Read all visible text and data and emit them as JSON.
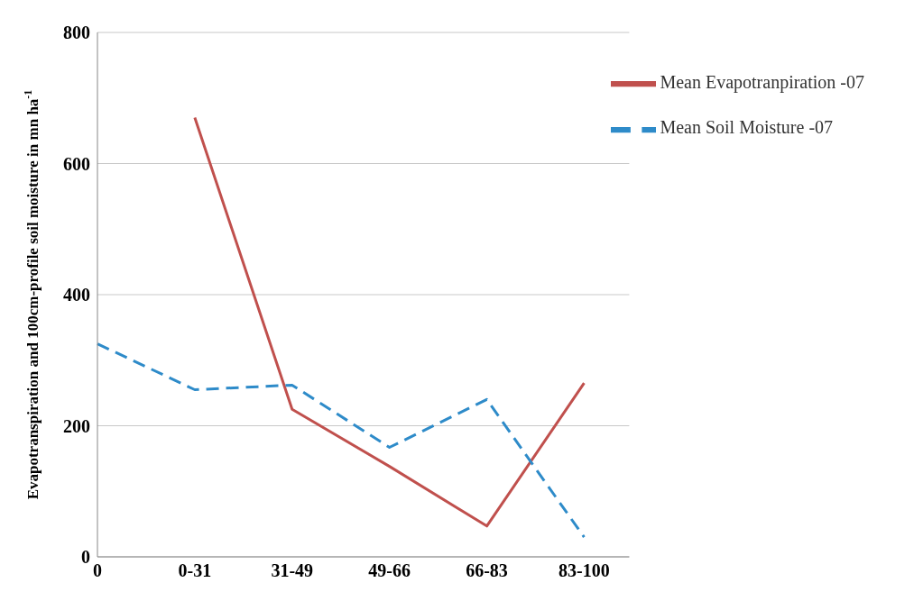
{
  "chart_data": {
    "type": "line",
    "ylabel": "Evapotranspiration and 100cm-profile soil moisture in mn ha$^{-1}$",
    "categories": [
      "0",
      "0-31",
      "31-49",
      "49-66",
      "66-83",
      "83-100"
    ],
    "series": [
      {
        "name": "Mean Evapotranpiration -07",
        "color": "#c0504d",
        "line_style": "solid",
        "values": [
          null,
          670,
          225,
          138,
          47,
          265
        ]
      },
      {
        "name": "Mean Soil Moisture -07",
        "color": "#2e8bc9",
        "line_style": "dashed",
        "values": [
          325,
          255,
          262,
          167,
          240,
          30
        ]
      }
    ],
    "ylim": [
      0,
      800
    ],
    "yticks": [
      0,
      200,
      400,
      600,
      800
    ],
    "grid": "y",
    "legend": "top right",
    "marker": "none"
  }
}
